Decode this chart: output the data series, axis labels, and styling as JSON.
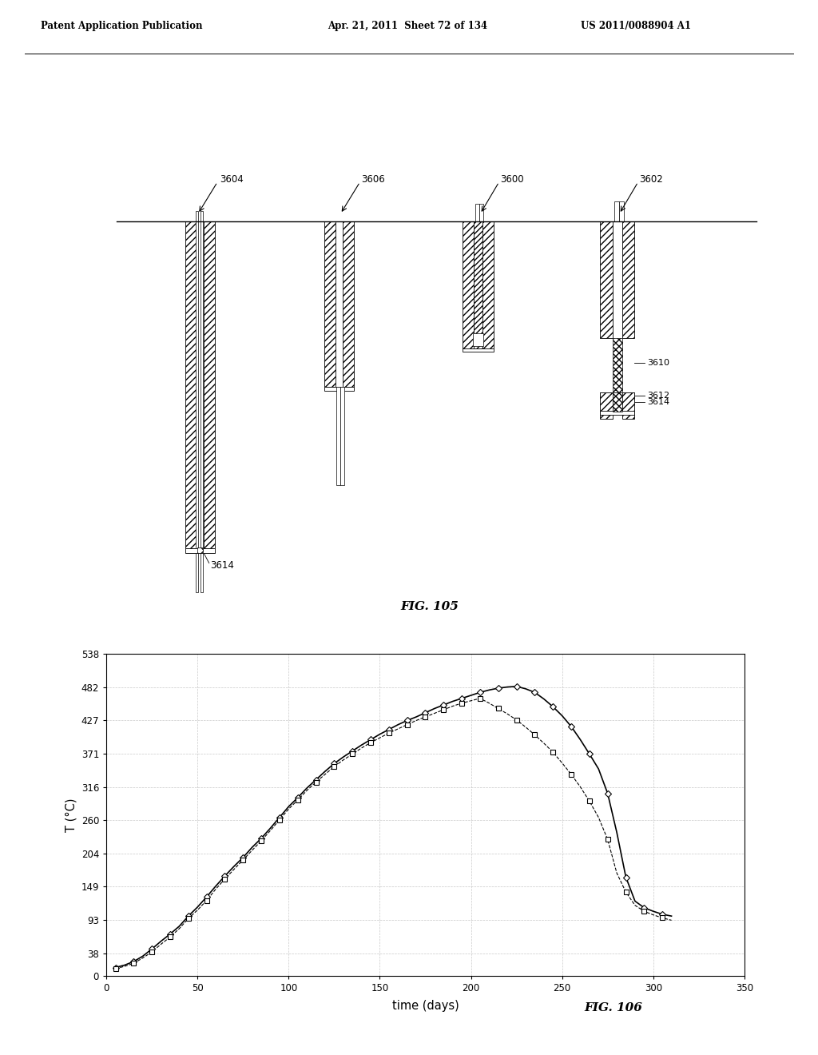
{
  "header_left": "Patent Application Publication",
  "header_mid": "Apr. 21, 2011  Sheet 72 of 134",
  "header_right": "US 2011/0088904 A1",
  "fig105_label": "FIG. 105",
  "fig106_label": "FIG. 106",
  "graph_xlabel": "time (days)",
  "graph_ylabel": "T (°C)",
  "graph_yticks": [
    0,
    38,
    93,
    149,
    204,
    260,
    316,
    371,
    427,
    482,
    538
  ],
  "graph_xticks": [
    0,
    50,
    100,
    150,
    200,
    250,
    300,
    350
  ],
  "graph_xlim": [
    0,
    350
  ],
  "graph_ylim": [
    0,
    538
  ],
  "series1_x": [
    5,
    10,
    15,
    20,
    25,
    30,
    35,
    40,
    45,
    50,
    55,
    60,
    65,
    70,
    75,
    80,
    85,
    90,
    95,
    100,
    105,
    110,
    115,
    120,
    125,
    130,
    135,
    140,
    145,
    150,
    155,
    160,
    165,
    170,
    175,
    180,
    185,
    190,
    195,
    200,
    205,
    210,
    215,
    220,
    225,
    230,
    235,
    240,
    245,
    250,
    255,
    260,
    265,
    270,
    275,
    280,
    285,
    290,
    295,
    300,
    305,
    310
  ],
  "series1_y": [
    14,
    18,
    24,
    33,
    45,
    58,
    70,
    83,
    100,
    115,
    132,
    150,
    167,
    183,
    198,
    215,
    230,
    247,
    265,
    283,
    298,
    314,
    328,
    342,
    355,
    366,
    376,
    386,
    395,
    404,
    412,
    420,
    427,
    433,
    440,
    447,
    453,
    459,
    464,
    469,
    474,
    478,
    481,
    483,
    484,
    480,
    474,
    463,
    450,
    435,
    417,
    395,
    371,
    346,
    305,
    240,
    165,
    125,
    114,
    108,
    103,
    100
  ],
  "series2_x": [
    5,
    10,
    15,
    20,
    25,
    30,
    35,
    40,
    45,
    50,
    55,
    60,
    65,
    70,
    75,
    80,
    85,
    90,
    95,
    100,
    105,
    110,
    115,
    120,
    125,
    130,
    135,
    140,
    145,
    150,
    155,
    160,
    165,
    170,
    175,
    180,
    185,
    190,
    195,
    200,
    205,
    210,
    215,
    220,
    225,
    230,
    235,
    240,
    245,
    250,
    255,
    260,
    265,
    270,
    275,
    280,
    285,
    290,
    295,
    300,
    305,
    310
  ],
  "series2_y": [
    12,
    16,
    21,
    30,
    40,
    53,
    65,
    79,
    96,
    110,
    126,
    145,
    162,
    178,
    194,
    210,
    226,
    243,
    261,
    279,
    294,
    310,
    324,
    337,
    350,
    361,
    371,
    381,
    390,
    398,
    406,
    413,
    420,
    427,
    433,
    439,
    445,
    451,
    456,
    460,
    464,
    456,
    447,
    438,
    428,
    416,
    403,
    389,
    374,
    356,
    337,
    316,
    292,
    265,
    228,
    172,
    140,
    118,
    108,
    102,
    97,
    93
  ],
  "background_color": "#ffffff",
  "line_color": "#000000",
  "grid_color": "#bbbbbb"
}
